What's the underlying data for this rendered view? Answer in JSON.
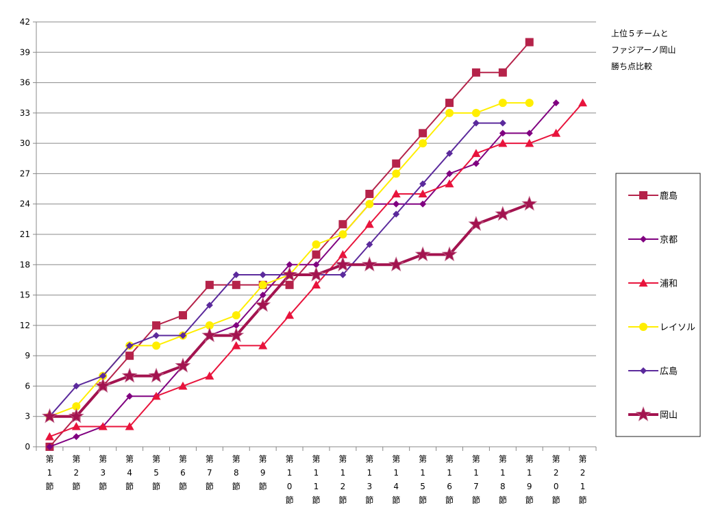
{
  "chart_data": {
    "type": "line",
    "title_lines": [
      "上位５チームと",
      "ファジアーノ岡山",
      "勝ち点比較"
    ],
    "categories": [
      "第1節",
      "第2節",
      "第3節",
      "第4節",
      "第5節",
      "第6節",
      "第7節",
      "第8節",
      "第9節",
      "第10節",
      "第11節",
      "第12節",
      "第13節",
      "第14節",
      "第15節",
      "第16節",
      "第17節",
      "第18節",
      "第19節",
      "第20節",
      "第21節"
    ],
    "yticks": [
      0,
      3,
      6,
      9,
      12,
      15,
      18,
      21,
      24,
      27,
      30,
      33,
      36,
      39,
      42
    ],
    "ylim": [
      0,
      42
    ],
    "grid": true,
    "legend_position": "right",
    "series": [
      {
        "name": "鹿島",
        "color": "#b5234a",
        "marker": "square",
        "values": [
          0,
          3,
          6,
          9,
          12,
          13,
          16,
          16,
          16,
          16,
          19,
          22,
          25,
          28,
          31,
          34,
          37,
          37,
          40,
          null,
          null
        ]
      },
      {
        "name": "京都",
        "color": "#800080",
        "marker": "diamond",
        "values": [
          0,
          1,
          2,
          5,
          5,
          8,
          11,
          12,
          15,
          18,
          18,
          21,
          24,
          24,
          24,
          27,
          28,
          31,
          31,
          34,
          null
        ]
      },
      {
        "name": "浦和",
        "color": "#e8143c",
        "marker": "triangle",
        "values": [
          1,
          2,
          2,
          2,
          5,
          6,
          7,
          10,
          10,
          13,
          16,
          19,
          22,
          25,
          25,
          26,
          29,
          30,
          30,
          31,
          34
        ]
      },
      {
        "name": "レイソル",
        "color": "#ffee00",
        "marker": "circle",
        "values": [
          3,
          4,
          7,
          10,
          10,
          11,
          12,
          13,
          16,
          17,
          20,
          21,
          24,
          27,
          30,
          33,
          33,
          34,
          34,
          null,
          null
        ]
      },
      {
        "name": "広島",
        "color": "#5b2a9c",
        "marker": "diamond",
        "values": [
          3,
          6,
          7,
          10,
          11,
          11,
          14,
          17,
          17,
          17,
          17,
          17,
          20,
          23,
          26,
          29,
          32,
          32,
          null,
          null,
          null
        ]
      },
      {
        "name": "岡山",
        "color": "#a3134f",
        "marker": "star",
        "values": [
          3,
          3,
          6,
          7,
          7,
          8,
          11,
          11,
          14,
          17,
          17,
          18,
          18,
          18,
          19,
          19,
          22,
          23,
          24,
          null,
          null
        ]
      }
    ]
  }
}
